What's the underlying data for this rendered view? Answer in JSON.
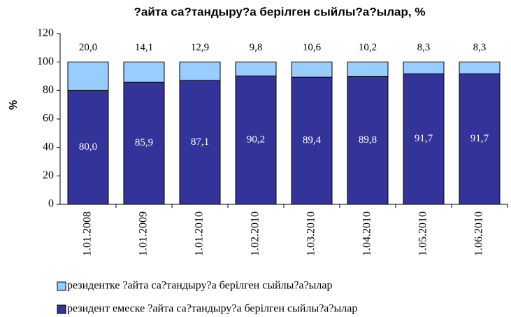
{
  "chart_data": {
    "type": "stacked_bar",
    "title": "?айта са?тандыру?а берілген сыйлы?а?ылар, %",
    "y_label": "%",
    "categories": [
      "1.01.2008",
      "1.01.2009",
      "1.01.2010",
      "1.02.2010",
      "1.03.2010",
      "1.04.2010",
      "1.05.2010",
      "1.06.2010"
    ],
    "series": [
      {
        "name": "резидент емеске ?айта са?тандыру?а берілген сыйлы?а?ылар",
        "color": "#333399",
        "values": [
          80.0,
          85.9,
          87.1,
          90.2,
          89.4,
          89.8,
          91.7,
          91.7
        ],
        "value_labels": [
          "80,0",
          "85,9",
          "87,1",
          "90,2",
          "89,4",
          "89,8",
          "91,7",
          "91,7"
        ]
      },
      {
        "name": "резидентке ?айта са?тандыру?а берілген сыйлы?а?ылар",
        "color": "#99ccff",
        "values": [
          20.0,
          14.1,
          12.9,
          9.8,
          10.6,
          10.2,
          8.3,
          8.3
        ],
        "value_labels": [
          "20,0",
          "14,1",
          "12,9",
          "9,8",
          "10,6",
          "10,2",
          "8,3",
          "8,3"
        ]
      }
    ],
    "ylim": [
      0,
      120
    ],
    "yticks": [
      0,
      20,
      40,
      60,
      80,
      100,
      120
    ]
  }
}
